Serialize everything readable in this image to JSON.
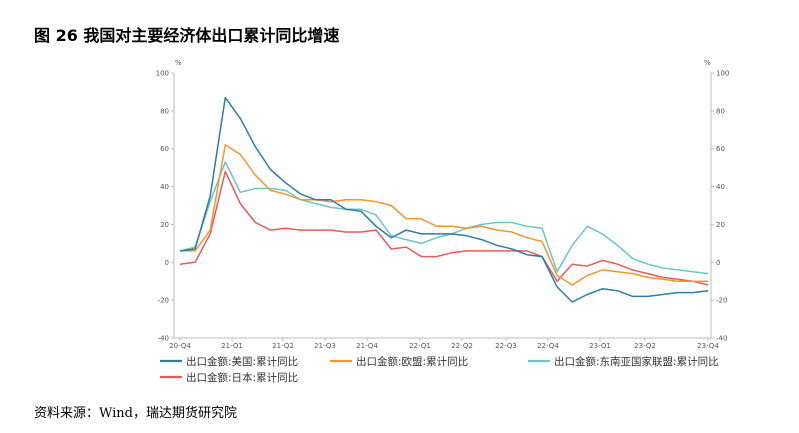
{
  "figure": {
    "title": "图 26 我国对主要经济体出口累计同比增速",
    "source": "资料来源：Wind，瑞达期货研究院"
  },
  "chart_data": {
    "type": "line",
    "ylabel_left": "%",
    "ylabel_right": "%",
    "ylim": [
      -40,
      100
    ],
    "yticks": [
      -40,
      -20,
      0,
      20,
      40,
      60,
      80,
      100
    ],
    "grid": false,
    "legend_position": "bottom",
    "x_tick_labels": [
      "20-Q4",
      "21-Q1",
      "21-Q2",
      "21-Q3",
      "21-Q4",
      "22-Q1",
      "22-Q2",
      "22-Q3",
      "22-Q4",
      "23-Q1",
      "23-Q2",
      "23-Q4"
    ],
    "x": [
      "2020-12",
      "2021-01",
      "2021-02",
      "2021-03",
      "2021-04",
      "2021-05",
      "2021-06",
      "2021-07",
      "2021-08",
      "2021-09",
      "2021-10",
      "2021-11",
      "2021-12",
      "2022-01",
      "2022-02",
      "2022-03",
      "2022-04",
      "2022-05",
      "2022-06",
      "2022-07",
      "2022-08",
      "2022-09",
      "2022-10",
      "2022-11",
      "2022-12",
      "2023-01",
      "2023-02",
      "2023-03",
      "2023-04",
      "2023-05",
      "2023-06",
      "2023-07",
      "2023-08",
      "2023-09",
      "2023-10",
      "2023-11"
    ],
    "series": [
      {
        "name": "出口金额:美国:累计同比",
        "color": "#2e7ca8",
        "values": [
          6,
          7,
          35,
          87,
          76,
          61,
          49,
          42,
          36,
          33,
          33,
          28,
          27,
          19,
          13,
          17,
          15,
          15,
          15,
          14,
          12,
          9,
          7,
          4,
          3,
          -13,
          -21,
          -17,
          -14,
          -15,
          -18,
          -18,
          -17,
          -16,
          -16,
          -15
        ]
      },
      {
        "name": "出口金额:欧盟:累计同比",
        "color": "#f0972e",
        "values": [
          6,
          6,
          17,
          62,
          57,
          46,
          38,
          36,
          33,
          33,
          32,
          33,
          33,
          32,
          30,
          23,
          23,
          19,
          19,
          18,
          19,
          17,
          16,
          13,
          11,
          -7,
          -12,
          -7,
          -4,
          -5,
          -6,
          -8,
          -9,
          -10,
          -10,
          -10
        ]
      },
      {
        "name": "出口金额:东南亚国家联盟:累计同比",
        "color": "#6cc5c5",
        "values": [
          6,
          8,
          32,
          53,
          37,
          39,
          39,
          38,
          33,
          31,
          29,
          28,
          28,
          25,
          14,
          12,
          10,
          13,
          15,
          18,
          20,
          21,
          21,
          19,
          18,
          -5,
          9,
          19,
          15,
          9,
          2,
          -1,
          -3,
          -4,
          -5,
          -6
        ]
      },
      {
        "name": "出口金额:日本:累计同比",
        "color": "#e85a5a",
        "values": [
          -1,
          0,
          15,
          48,
          31,
          21,
          17,
          18,
          17,
          17,
          17,
          16,
          16,
          17,
          7,
          8,
          3,
          3,
          5,
          6,
          6,
          6,
          6,
          6,
          3,
          -10,
          -1,
          -2,
          1,
          -1,
          -4,
          -6,
          -8,
          -9,
          -10,
          -12
        ]
      }
    ]
  }
}
